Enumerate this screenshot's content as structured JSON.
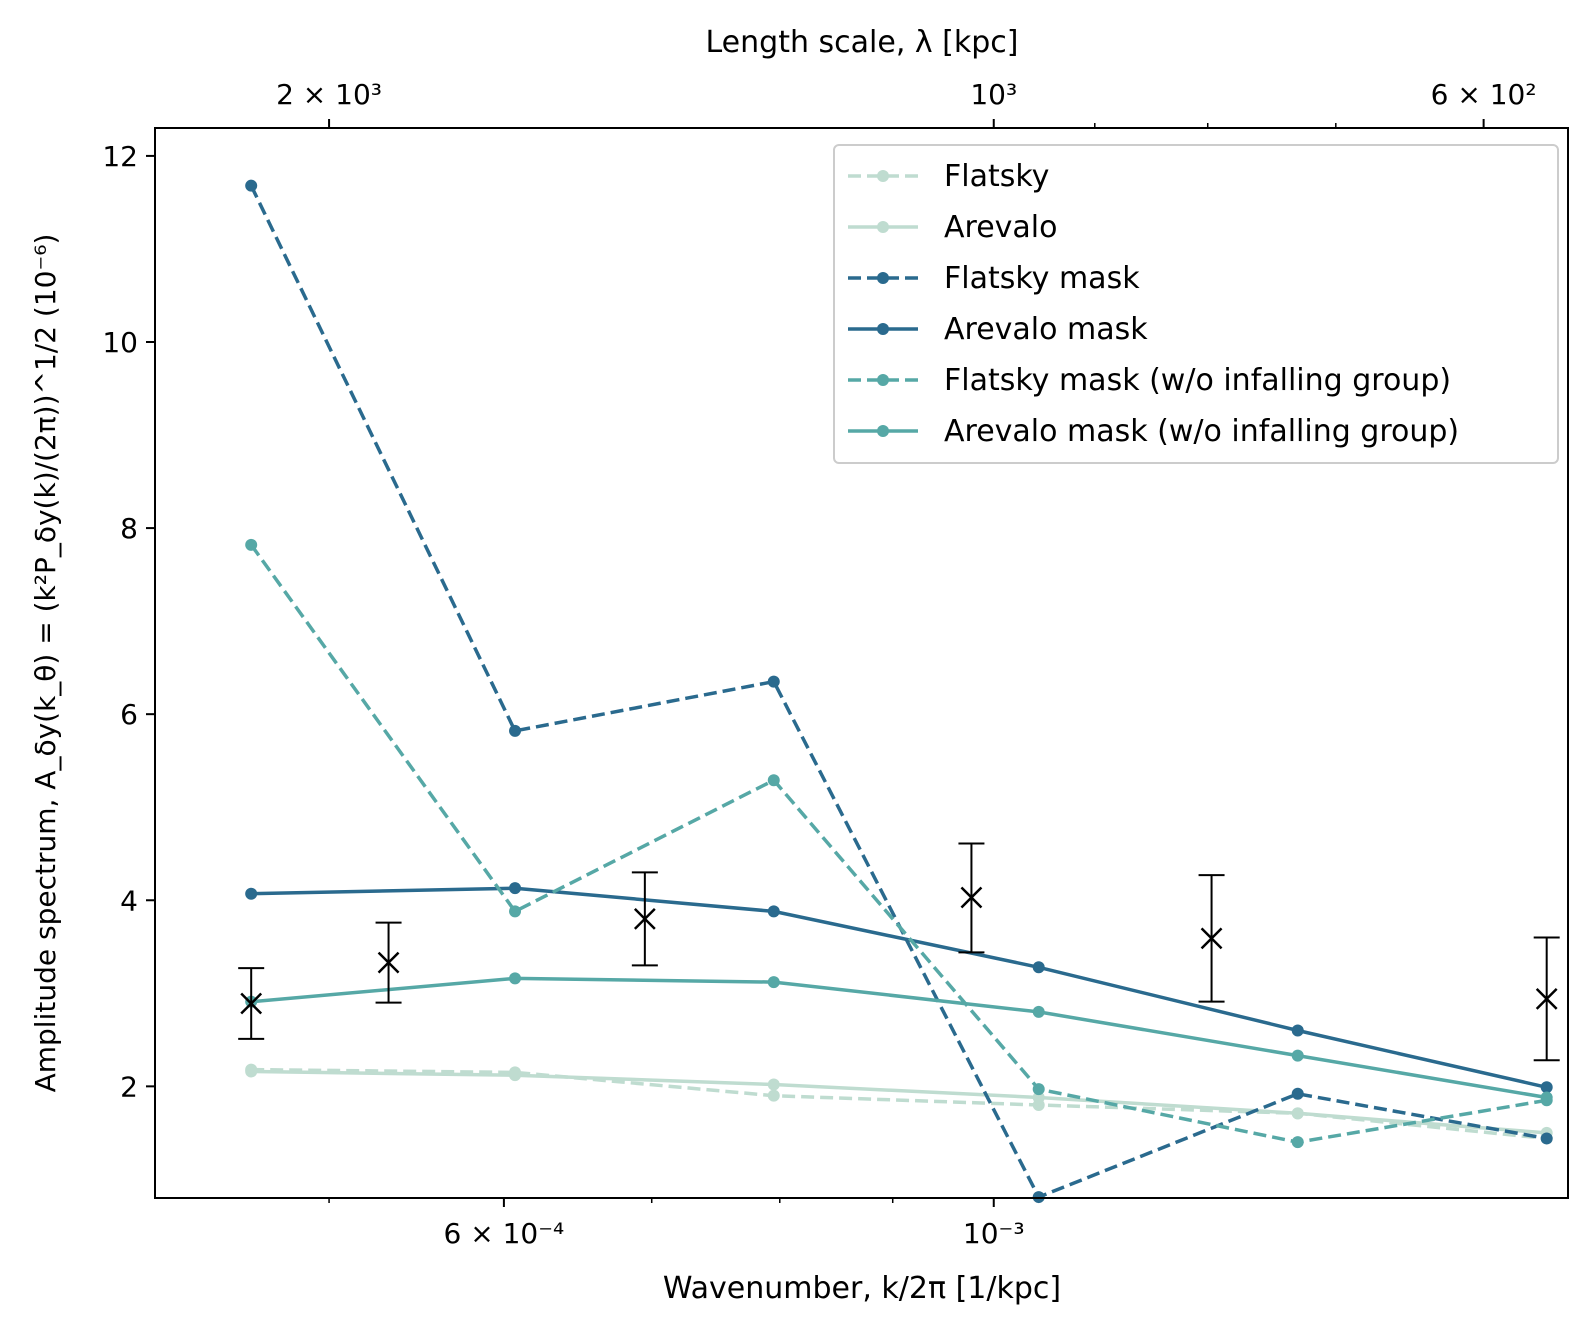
{
  "chart_data": {
    "type": "line",
    "xscale": "log",
    "xlabel": "Wavenumber, k/2π [1/kpc]",
    "ylabel": "Amplitude spectrum, A_δy(k_θ) = (k²P_δy(k)/(2π))^1/2 (10⁻⁶)",
    "top_xlabel": "Length scale, λ [kpc]",
    "xlim": [
      0.000417,
      0.00182
    ],
    "ylim": [
      0.8,
      12.3
    ],
    "grid": false,
    "legend_position": "top-right",
    "x": [
      0.000461,
      0.000607,
      0.000795,
      0.001048,
      0.001373,
      0.00178
    ],
    "bottom_ticks": [
      {
        "value": 0.0006,
        "label": "6 × 10⁻⁴"
      },
      {
        "value": 0.001,
        "label": "10⁻³"
      }
    ],
    "bottom_minor_ticks": [
      0.0005,
      0.0007,
      0.0008,
      0.0009
    ],
    "top_ticks": [
      {
        "value": 0.0005,
        "label": "2 × 10³"
      },
      {
        "value": 0.001,
        "label": "10³"
      },
      {
        "value": 0.0016667,
        "label": "6 × 10²"
      }
    ],
    "top_minor_ticks": [
      0.0011111,
      0.00125,
      0.0014286
    ],
    "y_ticks": [
      2,
      4,
      6,
      8,
      10,
      12
    ],
    "series": [
      {
        "name": "Flatsky",
        "color": "#bfdcd0",
        "dash": true,
        "values": [
          2.18,
          2.15,
          1.9,
          1.8,
          1.71,
          1.44
        ]
      },
      {
        "name": "Arevalo",
        "color": "#bfdcd0",
        "dash": false,
        "values": [
          2.16,
          2.12,
          2.02,
          1.88,
          1.71,
          1.5
        ]
      },
      {
        "name": "Flatsky mask",
        "color": "#2a6a8e",
        "dash": true,
        "values": [
          11.68,
          5.82,
          6.35,
          0.81,
          1.92,
          1.44
        ]
      },
      {
        "name": "Arevalo mask",
        "color": "#2a6a8e",
        "dash": false,
        "values": [
          4.07,
          4.13,
          3.88,
          3.28,
          2.6,
          1.99
        ]
      },
      {
        "name": "Flatsky mask (w/o infalling group)",
        "color": "#56a8a6",
        "dash": true,
        "values": [
          7.82,
          3.88,
          5.29,
          1.97,
          1.4,
          1.85
        ]
      },
      {
        "name": "Arevalo mask (w/o infalling group)",
        "color": "#56a8a6",
        "dash": false,
        "values": [
          2.91,
          3.16,
          3.12,
          2.8,
          2.33,
          1.88
        ]
      }
    ],
    "observations": {
      "marker": "x",
      "color": "#000000",
      "x": [
        0.000461,
        0.000532,
        0.000695,
        0.000977,
        0.001255,
        0.00178
      ],
      "y": [
        2.89,
        3.33,
        3.8,
        4.03,
        3.59,
        2.94
      ],
      "yerr_low": [
        2.51,
        2.9,
        3.3,
        3.44,
        2.91,
        2.28
      ],
      "yerr_high": [
        3.27,
        3.76,
        4.3,
        4.61,
        4.27,
        3.6
      ]
    }
  }
}
